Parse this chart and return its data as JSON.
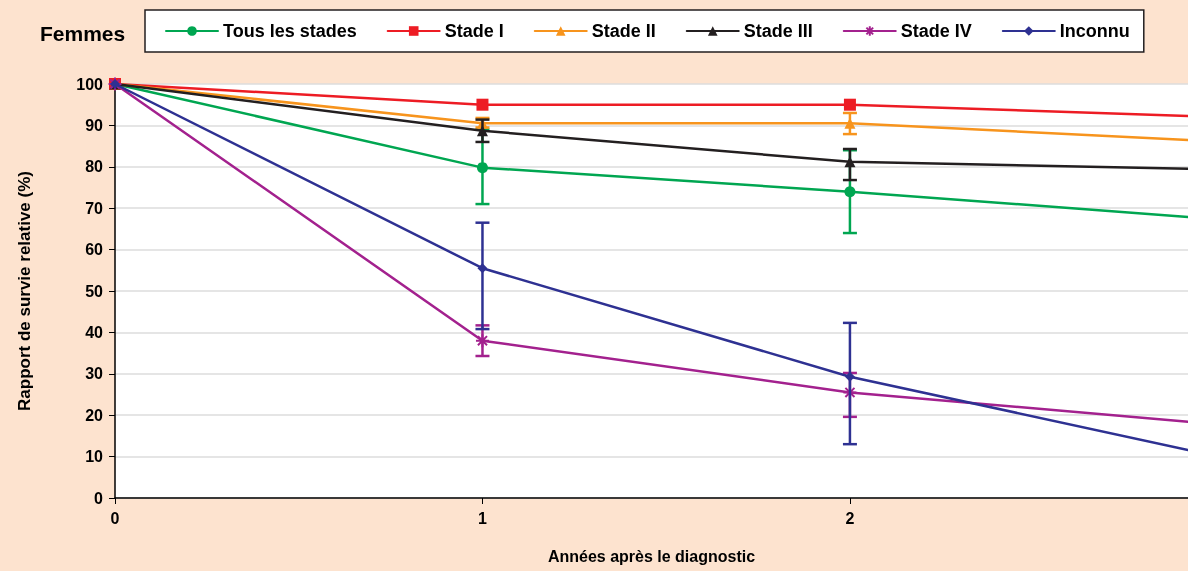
{
  "chart_data": {
    "type": "line",
    "title": "Femmes",
    "xlabel": "Années après le diagnostic",
    "ylabel": "Rapport de survie relative (%)",
    "xlim": [
      0,
      2.92
    ],
    "xticks": [
      0,
      1,
      2
    ],
    "ylim": [
      0,
      100
    ],
    "yticks": [
      0,
      10,
      20,
      30,
      40,
      50,
      60,
      70,
      80,
      90,
      100
    ],
    "grid": "y",
    "legend": "top",
    "line_style": "solid",
    "series": [
      {
        "name": "Tous les stades",
        "color": "#00a651",
        "marker": "circle",
        "x": [
          0,
          1,
          2,
          2.92
        ],
        "values": [
          100,
          79.8,
          74,
          67.9
        ],
        "errors": [
          null,
          [
            71,
            89
          ],
          [
            64,
            84
          ],
          null
        ]
      },
      {
        "name": "Stade I",
        "color": "#ed1c24",
        "marker": "square",
        "x": [
          0,
          1,
          2,
          2.92
        ],
        "values": [
          100,
          95,
          95,
          92.3
        ],
        "errors": [
          null,
          null,
          null,
          null
        ]
      },
      {
        "name": "Stade II",
        "color": "#f7941d",
        "marker": "triangle",
        "x": [
          0,
          1,
          2,
          2.92
        ],
        "values": [
          100,
          90.5,
          90.5,
          86.5
        ],
        "errors": [
          null,
          [
            89.5,
            91.8
          ],
          [
            87.9,
            93
          ],
          null
        ]
      },
      {
        "name": "Stade III",
        "color": "#231f20",
        "marker": "triangle",
        "x": [
          0,
          1,
          2,
          2.92
        ],
        "values": [
          100,
          88.7,
          81.2,
          79.5
        ],
        "errors": [
          null,
          [
            86,
            91.4
          ],
          [
            76.8,
            84.3
          ],
          null
        ]
      },
      {
        "name": "Stade IV",
        "color": "#a3218e",
        "marker": "cross",
        "x": [
          0,
          1,
          2,
          2.92
        ],
        "values": [
          100,
          38,
          25.5,
          18.4
        ],
        "errors": [
          null,
          [
            34.3,
            41.7
          ],
          [
            19.6,
            30.2
          ],
          null
        ]
      },
      {
        "name": "Inconnu",
        "color": "#2e3192",
        "marker": "diamond",
        "x": [
          0,
          1,
          2,
          2.92
        ],
        "values": [
          100,
          55.5,
          29.3,
          11.6
        ],
        "errors": [
          null,
          [
            40.8,
            66.5
          ],
          [
            13,
            42.3
          ],
          null
        ]
      }
    ]
  }
}
